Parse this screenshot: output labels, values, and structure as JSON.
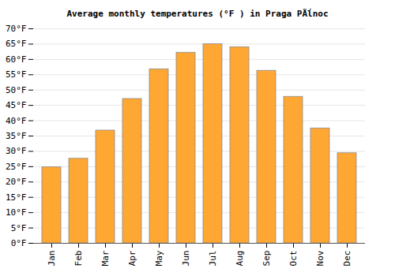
{
  "chart_data": {
    "type": "bar",
    "title": "Average monthly temperatures (°F ) in Praga PÃĺnoc",
    "categories": [
      "Jan",
      "Feb",
      "Mar",
      "Apr",
      "May",
      "Jun",
      "Jul",
      "Aug",
      "Sep",
      "Oct",
      "Nov",
      "Dec"
    ],
    "values": [
      24.8,
      27.6,
      36.8,
      47.1,
      56.8,
      62.2,
      65.0,
      64.0,
      56.3,
      47.8,
      37.5,
      29.4
    ],
    "color": "#ffa733",
    "ylim": [
      0,
      70
    ],
    "yticks": [
      {
        "value": 0,
        "label": "0°F"
      },
      {
        "value": 5,
        "label": "5°F"
      },
      {
        "value": 10,
        "label": "10°F"
      },
      {
        "value": 15,
        "label": "15°F"
      },
      {
        "value": 20,
        "label": "20°F"
      },
      {
        "value": 25,
        "label": "25°F"
      },
      {
        "value": 30,
        "label": "30°F"
      },
      {
        "value": 35,
        "label": "35°F"
      },
      {
        "value": 40,
        "label": "40°F"
      },
      {
        "value": 45,
        "label": "45°F"
      },
      {
        "value": 50,
        "label": "50°F"
      },
      {
        "value": 55,
        "label": "55°F"
      },
      {
        "value": 60,
        "label": "60°F"
      },
      {
        "value": 65,
        "label": "65°F"
      },
      {
        "value": 70,
        "label": "70°F"
      }
    ],
    "grid": true
  }
}
